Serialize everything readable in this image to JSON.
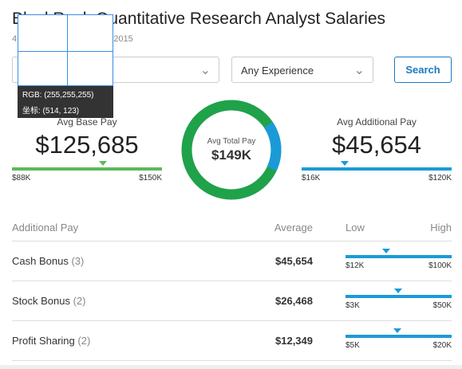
{
  "header": {
    "title": "BlackRock Quantitative Research Analyst Salaries",
    "subtitle_start": "4",
    "subtitle_end": "3, 2015"
  },
  "filters": {
    "experience": "Any Experience",
    "search": "Search"
  },
  "summary": {
    "base": {
      "label": "Avg Base Pay",
      "value": 125685,
      "value_label": "$125,685",
      "low": {
        "value": 88000,
        "label": "$88K"
      },
      "high": {
        "value": 150000,
        "label": "$150K"
      },
      "color": "#5cb85c"
    },
    "total": {
      "label": "Avg Total Pay",
      "value_label": "$149K"
    },
    "additional": {
      "label": "Avg Additional Pay",
      "value": 45654,
      "value_label": "$45,654",
      "low": {
        "value": 16000,
        "label": "$16K"
      },
      "high": {
        "value": 120000,
        "label": "$120K"
      },
      "color": "#1a9bd7"
    }
  },
  "table": {
    "headers": [
      "Additional Pay",
      "Average",
      "Low",
      "High"
    ],
    "rows": [
      {
        "name": "Cash Bonus",
        "count": "(3)",
        "value": 45654,
        "value_label": "$45,654",
        "low": {
          "value": 12000,
          "label": "$12K"
        },
        "high": {
          "value": 100000,
          "label": "$100K"
        }
      },
      {
        "name": "Stock Bonus",
        "count": "(2)",
        "value": 26468,
        "value_label": "$26,468",
        "low": {
          "value": 3000,
          "label": "$3K"
        },
        "high": {
          "value": 50000,
          "label": "$50K"
        }
      },
      {
        "name": "Profit Sharing",
        "count": "(2)",
        "value": 12349,
        "value_label": "$12,349",
        "low": {
          "value": 5000,
          "label": "$5K"
        },
        "high": {
          "value": 20000,
          "label": "$20K"
        }
      }
    ]
  },
  "overlay": {
    "rgb": "RGB:  (255,255,255)",
    "coords": "坐标:  (514, 123)"
  }
}
